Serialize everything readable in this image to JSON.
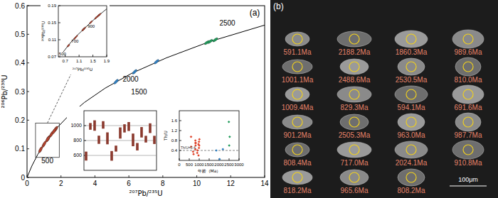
{
  "chart_data": [
    {
      "type": "scatter",
      "label": "(a)",
      "x_label": "²⁰⁷Pb/²³⁵U",
      "y_label": "²⁰⁶Pb/²³⁸U",
      "xlim": [
        0,
        14
      ],
      "ylim": [
        0,
        0.6
      ],
      "xticks": [
        0,
        2,
        4,
        6,
        8,
        10,
        12,
        14
      ],
      "yticks": [
        0,
        0.1,
        0.2,
        0.3,
        0.4,
        0.5,
        0.6
      ],
      "series": [
        {
          "type": "line",
          "color": "#000000",
          "x": [
            0,
            0.279,
            0.636,
            1.094,
            1.677,
            2.424,
            3.381,
            4.605,
            6.169,
            8.215,
            10.73,
            14.0
          ],
          "values": [
            0,
            0.0395,
            0.0807,
            0.1233,
            0.1678,
            0.214,
            0.262,
            0.3119,
            0.3638,
            0.4178,
            0.4738,
            0.5321
          ]
        },
        {
          "type": "scatter",
          "marker": "ellipse",
          "color": "#b4412c",
          "x": [
            0.79,
            1.65,
            1.68,
            1.221,
            1.702,
            1.263,
            0.794,
            0.976,
            1.429,
            1.582,
            1.645,
            1.217,
            1.026,
            1.452,
            1.238,
            1.588,
            1.217
          ],
          "values": [
            0.096,
            0.1659,
            0.168,
            0.1338,
            0.1695,
            0.1373,
            0.0965,
            0.1133,
            0.15,
            0.1611,
            0.1656,
            0.1336,
            0.1177,
            0.1518,
            0.1353,
            0.1615,
            0.1336
          ]
        },
        {
          "type": "scatter",
          "marker": "ellipse",
          "color": "#2f7fc1",
          "x": [
            7.628,
            5.247,
            6.34
          ],
          "values": [
            0.4042,
            0.3345,
            0.3689
          ]
        },
        {
          "type": "scatter",
          "marker": "ellipse",
          "color": "#1f9a5a",
          "x": [
            10.6,
            11.09,
            10.79
          ],
          "values": [
            0.4712,
            0.4807,
            0.475
          ]
        }
      ],
      "annotations": [
        {
          "text": "500",
          "x": 1.2,
          "y": 0.05
        },
        {
          "text": "1500",
          "x": 6.6,
          "y": 0.29
        },
        {
          "text": "2000",
          "x": 6.1,
          "y": 0.335
        },
        {
          "text": "2500",
          "x": 11.8,
          "y": 0.53
        }
      ]
    },
    {
      "type": "scatter",
      "x_label": "²⁰⁷Pb/²³⁵U",
      "y_label": "²⁰⁶Pb/²³⁸U",
      "xlim": [
        0.5,
        1.9
      ],
      "ylim": [
        0.07,
        0.19
      ],
      "xticks": [
        0.7,
        1.1,
        1.5,
        1.9
      ],
      "yticks": [
        0.07,
        0.11,
        0.15,
        0.19
      ],
      "series": [
        {
          "type": "line",
          "color": "#000000",
          "x": [
            0.636,
            0.798,
            0.973,
            1.199,
            1.426,
            1.677,
            1.954
          ],
          "values": [
            0.0807,
            0.0976,
            0.1148,
            0.1321,
            0.1498,
            0.1678,
            0.186
          ]
        },
        {
          "type": "scatter",
          "marker": "ellipse",
          "color": "#b4412c",
          "x": [
            0.79,
            1.65,
            1.68,
            1.221,
            1.702,
            1.263,
            0.794,
            0.976,
            1.429,
            1.582,
            1.645,
            1.217,
            1.026,
            1.452,
            1.238,
            1.588,
            1.217
          ],
          "values": [
            0.096,
            0.1659,
            0.168,
            0.1338,
            0.1695,
            0.1373,
            0.0965,
            0.1133,
            0.15,
            0.1611,
            0.1656,
            0.1336,
            0.1177,
            0.1518,
            0.1353,
            0.1615,
            0.1336
          ]
        }
      ],
      "annotations": [
        {
          "text": "500",
          "x": 0.62,
          "y": 0.074
        },
        {
          "text": "700",
          "x": 0.98,
          "y": 0.103
        },
        {
          "text": "900",
          "x": 1.45,
          "y": 0.138
        }
      ]
    },
    {
      "type": "bar",
      "ylim": [
        400,
        1200
      ],
      "yticks": [
        600,
        800,
        1000
      ],
      "grid": true,
      "color": "#8b3a2e",
      "categories": [
        null,
        null,
        null,
        null,
        null,
        null,
        null,
        null,
        null,
        null,
        null,
        null,
        null,
        null,
        null,
        null,
        null
      ],
      "values": [
        591.1,
        989.6,
        1001.1,
        810.0,
        1009.4,
        829.3,
        594.1,
        691.6,
        901.2,
        963.0,
        987.7,
        808.4,
        717.0,
        910.8,
        818.2,
        965.6,
        808.2
      ],
      "errors": [
        60,
        45,
        70,
        55,
        50,
        80,
        65,
        40,
        75,
        55,
        60,
        85,
        50,
        70,
        45,
        65,
        55
      ]
    },
    {
      "type": "scatter",
      "x_label": "年龄（Ma）",
      "y_label": "Th/U",
      "xlim": [
        0,
        3000
      ],
      "ylim": [
        0,
        2
      ],
      "xticks": [
        0,
        500,
        1000,
        1500,
        2000,
        2500,
        3000
      ],
      "yticks": [
        0.4,
        0.8,
        1.2,
        1.6
      ],
      "series": [
        {
          "marker": "diamond",
          "color": "#e0452c",
          "x": [
            591.1,
            989.6,
            1001.1,
            810.0,
            1009.4,
            829.3,
            594.1,
            691.6,
            901.2,
            963.0,
            987.7,
            808.4,
            717.0,
            910.8,
            818.2,
            965.6,
            808.2
          ],
          "values": [
            0.95,
            0.75,
            0.6,
            0.45,
            0.85,
            0.7,
            0.55,
            0.35,
            0.3,
            0.65,
            0.5,
            0.8,
            0.25,
            0.4,
            0.6,
            0.2,
            0.7
          ]
        },
        {
          "marker": "diamond",
          "color": "#2f7fc1",
          "x": [
            2188.2,
            1860.3,
            2024.1
          ],
          "values": [
            0.45,
            0.4,
            0.05
          ]
        },
        {
          "marker": "diamond",
          "color": "#1f9a5a",
          "x": [
            2488.6,
            2530.5,
            2505.3
          ],
          "values": [
            1.55,
            0.95,
            0.6
          ]
        }
      ],
      "reference_line": {
        "value": 0.4,
        "label": "Th/U=0.4",
        "line_style": "dashed"
      }
    }
  ],
  "cl_images": {
    "label": "(b)",
    "ages": [
      "591.1Ma",
      "2188.2Ma",
      "1860.3Ma",
      "989.6Ma",
      "1001.1Ma",
      "2488.6Ma",
      "2530.5Ma",
      "810.0Ma",
      "1009.4Ma",
      "829.3Ma",
      "594.1Ma",
      "691.6Ma",
      "901.2Ma",
      "2505.3Ma",
      "963.0Ma",
      "987.7Ma",
      "808.4Ma",
      "717.0Ma",
      "2024.1Ma",
      "910.8Ma",
      "818.2Ma",
      "965.6Ma",
      "808.2Ma"
    ],
    "scale_bar": "100μm"
  }
}
